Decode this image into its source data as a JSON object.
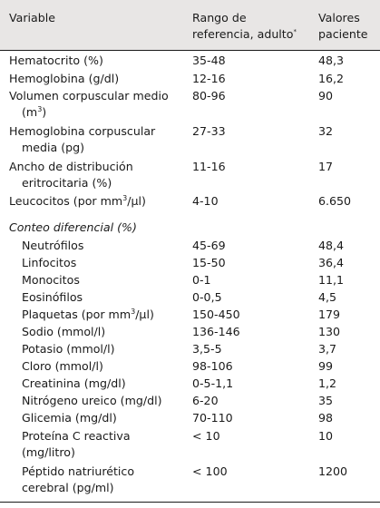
{
  "headers": {
    "variable": "Variable",
    "range_line1": "Rango de",
    "range_line2": "referencia, adulto",
    "range_mark": "*",
    "patient_line1": "Valores",
    "patient_line2": "paciente"
  },
  "rows": [
    {
      "name": "Hematocrito (%)",
      "range": "35-48",
      "value": "48,3"
    },
    {
      "name": "Hemoglobina (g/dl)",
      "range": "12-16",
      "value": "16,2"
    },
    {
      "name_l1": "Volumen corpuscular medio",
      "name_l2_pre": "(m",
      "name_l2_sup": "3",
      "name_l2_post": ")",
      "range": "80-96",
      "value": "90"
    },
    {
      "name_l1": "Hemoglobina corpuscular",
      "name_l2": "media (pg)",
      "range": "27-33",
      "value": "32"
    },
    {
      "name_l1": "Ancho de distribución",
      "name_l2": "eritrocitaria (%)",
      "range": "11-16",
      "value": "17"
    },
    {
      "name_pre": "Leucocitos (por mm",
      "name_sup": "3",
      "name_post": "/µl)",
      "range": "4-10",
      "value": "6.650"
    }
  ],
  "section": "Conteo diferencial (%)",
  "sub_rows": [
    {
      "name": "Neutrófilos",
      "range": "45-69",
      "value": "48,4"
    },
    {
      "name": "Linfocitos",
      "range": "15-50",
      "value": "36,4"
    },
    {
      "name": "Monocitos",
      "range": "0-1",
      "value": "11,1"
    },
    {
      "name": "Eosinófilos",
      "range": "0-0,5",
      "value": "4,5"
    },
    {
      "name_pre": "Plaquetas (por mm",
      "name_sup": "3",
      "name_post": "/µl)",
      "range": "150-450",
      "value": "179"
    },
    {
      "name": "Sodio (mmol/l)",
      "range": "136-146",
      "value": "130"
    },
    {
      "name": "Potasio (mmol/l)",
      "range": "3,5-5",
      "value": "3,7"
    },
    {
      "name": "Cloro (mmol/l)",
      "range": "98-106",
      "value": "99"
    },
    {
      "name": "Creatinina (mg/dl)",
      "range": "0-5-1,1",
      "value": "1,2"
    },
    {
      "name": "Nitrógeno ureico (mg/dl)",
      "range": "6-20",
      "value": "35"
    },
    {
      "name": "Glicemia (mg/dl)",
      "range": "70-110",
      "value": "98"
    },
    {
      "name_l1": "Proteína C reactiva",
      "name_l2": "(mg/litro)",
      "range": "< 10",
      "value": "10"
    },
    {
      "name_l1": "Péptido natriurético",
      "name_l2": "cerebral (pg/ml)",
      "range": "< 100",
      "value": "1200"
    }
  ]
}
